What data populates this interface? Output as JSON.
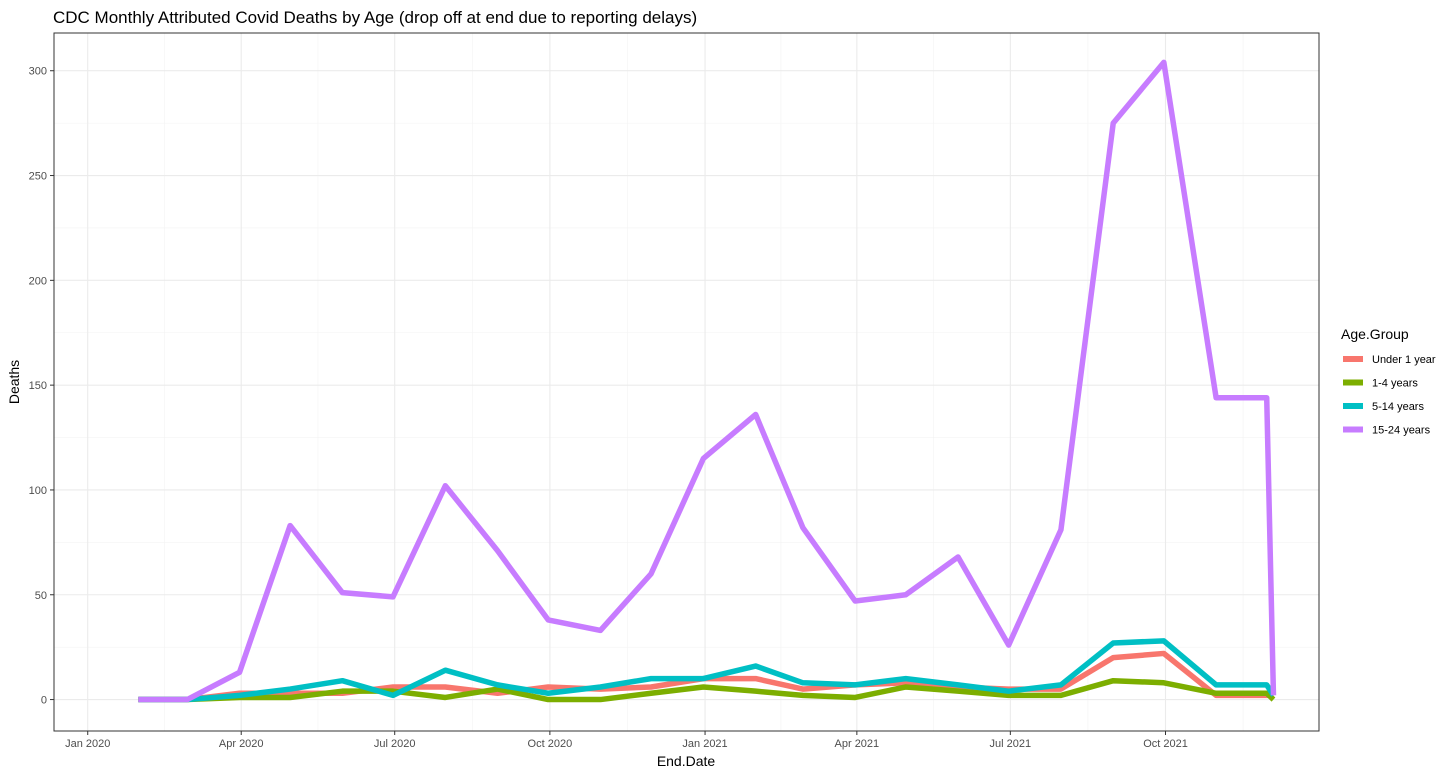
{
  "chart_data": {
    "type": "line",
    "title": "CDC Monthly Attributed Covid Deaths by Age (drop off at end due to reporting delays)",
    "xlabel": "End.Date",
    "ylabel": "Deaths",
    "x_axis_type": "date",
    "xlim": [
      "2019-12-12",
      "2021-12-31"
    ],
    "ylim": [
      -15,
      318
    ],
    "x_ticks": [
      {
        "date": "2020-01-01",
        "label": "Jan 2020"
      },
      {
        "date": "2020-04-01",
        "label": "Apr 2020"
      },
      {
        "date": "2020-07-01",
        "label": "Jul 2020"
      },
      {
        "date": "2020-10-01",
        "label": "Oct 2020"
      },
      {
        "date": "2021-01-01",
        "label": "Jan 2021"
      },
      {
        "date": "2021-04-01",
        "label": "Apr 2021"
      },
      {
        "date": "2021-07-01",
        "label": "Jul 2021"
      },
      {
        "date": "2021-10-01",
        "label": "Oct 2021"
      }
    ],
    "y_ticks": [
      0,
      50,
      100,
      150,
      200,
      250,
      300
    ],
    "grid": true,
    "legend_title": "Age.Group",
    "legend_position": "right",
    "x": [
      "2020-01-31",
      "2020-02-29",
      "2020-03-31",
      "2020-04-30",
      "2020-05-31",
      "2020-06-30",
      "2020-07-31",
      "2020-08-31",
      "2020-09-30",
      "2020-10-31",
      "2020-11-30",
      "2020-12-31",
      "2021-01-31",
      "2021-02-28",
      "2021-03-31",
      "2021-04-30",
      "2021-05-31",
      "2021-06-30",
      "2021-07-31",
      "2021-08-31",
      "2021-09-30",
      "2021-10-31",
      "2021-11-30",
      "2021-12-04"
    ],
    "series": [
      {
        "name": "Under 1 year",
        "color": "#F8766D",
        "values": [
          0,
          0,
          3,
          3,
          3,
          6,
          6,
          3,
          6,
          5,
          6,
          10,
          10,
          5,
          7,
          8,
          6,
          5,
          5,
          20,
          22,
          2,
          2,
          2
        ]
      },
      {
        "name": "1-4 years",
        "color": "#7CAE00",
        "values": [
          0,
          0,
          1,
          1,
          4,
          4,
          1,
          5,
          0,
          0,
          3,
          6,
          4,
          2,
          1,
          6,
          4,
          2,
          2,
          9,
          8,
          3,
          3,
          0
        ]
      },
      {
        "name": "5-14 years",
        "color": "#00BFC4",
        "values": [
          0,
          0,
          2,
          5,
          9,
          2,
          14,
          7,
          3,
          6,
          10,
          10,
          16,
          8,
          7,
          10,
          7,
          4,
          7,
          27,
          28,
          7,
          7,
          2
        ]
      },
      {
        "name": "15-24 years",
        "color": "#C77CFF",
        "values": [
          0,
          0,
          13,
          83,
          51,
          49,
          102,
          71,
          38,
          33,
          60,
          115,
          136,
          82,
          47,
          50,
          68,
          26,
          81,
          275,
          304,
          144,
          144,
          2
        ]
      }
    ]
  }
}
